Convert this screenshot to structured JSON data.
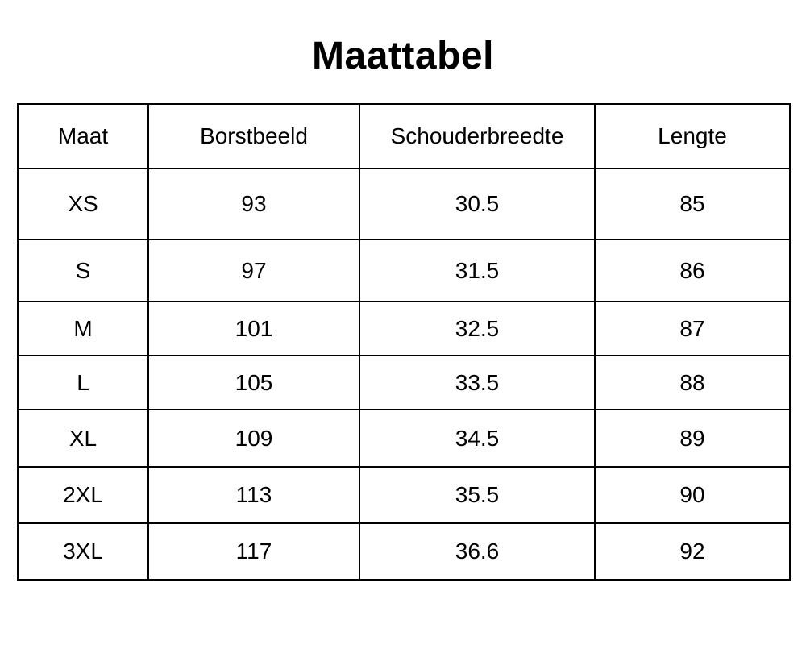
{
  "page": {
    "title": "Maattabel"
  },
  "table": {
    "headers": [
      "Maat",
      "Borstbeeld",
      "Schouderbreedte",
      "Lengte"
    ],
    "rows": [
      [
        "XS",
        "93",
        "30.5",
        "85"
      ],
      [
        "S",
        "97",
        "31.5",
        "86"
      ],
      [
        "M",
        "101",
        "32.5",
        "87"
      ],
      [
        "L",
        "105",
        "33.5",
        "88"
      ],
      [
        "XL",
        "109",
        "34.5",
        "89"
      ],
      [
        "2XL",
        "113",
        "35.5",
        "90"
      ],
      [
        "3XL",
        "117",
        "36.6",
        "92"
      ]
    ]
  },
  "colors": {
    "background": "#ffffff",
    "text": "#000000",
    "border": "#000000"
  },
  "chart_data": {
    "type": "table",
    "title": "Maattabel",
    "columns": [
      "Maat",
      "Borstbeeld",
      "Schouderbreedte",
      "Lengte"
    ],
    "rows": [
      {
        "maat": "XS",
        "borstbeeld": 93,
        "schouderbreedte": 30.5,
        "lengte": 85
      },
      {
        "maat": "S",
        "borstbeeld": 97,
        "schouderbreedte": 31.5,
        "lengte": 86
      },
      {
        "maat": "M",
        "borstbeeld": 101,
        "schouderbreedte": 32.5,
        "lengte": 87
      },
      {
        "maat": "L",
        "borstbeeld": 105,
        "schouderbreedte": 33.5,
        "lengte": 88
      },
      {
        "maat": "XL",
        "borstbeeld": 109,
        "schouderbreedte": 34.5,
        "lengte": 89
      },
      {
        "maat": "2XL",
        "borstbeeld": 113,
        "schouderbreedte": 35.5,
        "lengte": 90
      },
      {
        "maat": "3XL",
        "borstbeeld": 117,
        "schouderbreedte": 36.6,
        "lengte": 92
      }
    ]
  }
}
